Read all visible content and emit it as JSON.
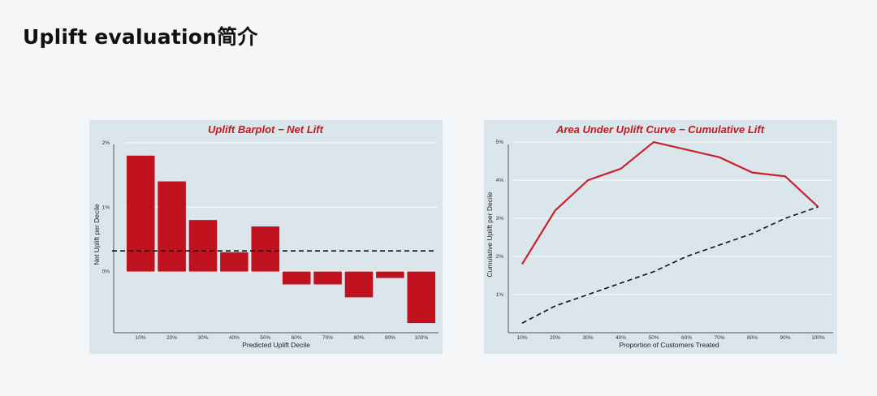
{
  "page": {
    "title": "Uplift evaluation简介"
  },
  "colors": {
    "bar": "#c0111f",
    "line": "#c8232c",
    "title_text": "#c8161d",
    "panel_bg": "#dbe5ec"
  },
  "chart_data": [
    {
      "type": "bar",
      "title": "Uplift Barplot − Net Lift",
      "xlabel": "Predicted Uplift Decile",
      "ylabel": "Net Uplift per Decile",
      "categories": [
        "10%",
        "20%",
        "30%",
        "40%",
        "50%",
        "60%",
        "70%",
        "80%",
        "90%",
        "100%"
      ],
      "values": [
        1.8,
        1.4,
        0.8,
        0.3,
        0.7,
        -0.2,
        -0.2,
        -0.4,
        -0.1,
        -0.8
      ],
      "yticks": [
        "0%",
        "1%",
        "2%"
      ],
      "ytick_values": [
        0,
        1,
        2
      ],
      "ylim": [
        -0.95,
        2.1
      ],
      "reference_line": {
        "value": 0.32,
        "style": "dashed"
      },
      "grid": true
    },
    {
      "type": "line",
      "title": "Area Under Uplift Curve − Cumulative Lift",
      "xlabel": "Proportion of Customers Treated",
      "ylabel": "Cumulative Uplift per Decile",
      "categories": [
        "10%",
        "20%",
        "30%",
        "40%",
        "50%",
        "60%",
        "70%",
        "80%",
        "90%",
        "100%"
      ],
      "series": [
        {
          "values": [
            1.8,
            3.2,
            4.0,
            4.3,
            5.0,
            4.8,
            4.6,
            4.2,
            4.1,
            3.3
          ],
          "style": "solid"
        },
        {
          "values": [
            0.25,
            0.7,
            1.0,
            1.3,
            1.6,
            2.0,
            2.3,
            2.6,
            3.0,
            3.3
          ],
          "style": "dashed"
        }
      ],
      "yticks": [
        "1%",
        "2%",
        "3%",
        "4%",
        "5%"
      ],
      "ytick_values": [
        1,
        2,
        3,
        4,
        5
      ],
      "ylim": [
        0,
        5.15
      ],
      "grid": true
    }
  ]
}
